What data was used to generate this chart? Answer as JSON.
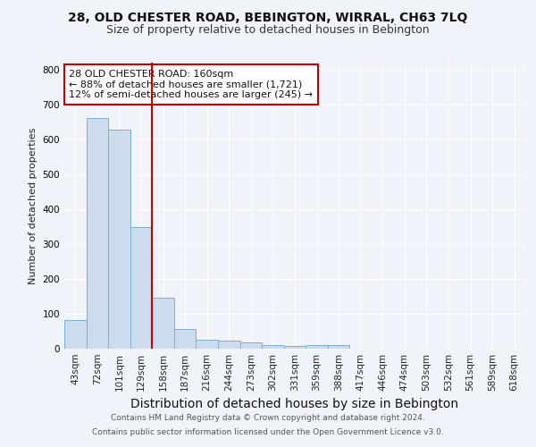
{
  "title1": "28, OLD CHESTER ROAD, BEBINGTON, WIRRAL, CH63 7LQ",
  "title2": "Size of property relative to detached houses in Bebington",
  "xlabel": "Distribution of detached houses by size in Bebington",
  "ylabel": "Number of detached properties",
  "bar_labels": [
    "43sqm",
    "72sqm",
    "101sqm",
    "129sqm",
    "158sqm",
    "187sqm",
    "216sqm",
    "244sqm",
    "273sqm",
    "302sqm",
    "331sqm",
    "359sqm",
    "388sqm",
    "417sqm",
    "446sqm",
    "474sqm",
    "503sqm",
    "532sqm",
    "561sqm",
    "589sqm",
    "618sqm"
  ],
  "bar_heights": [
    83,
    660,
    628,
    348,
    145,
    57,
    26,
    22,
    18,
    10,
    8,
    10,
    10,
    0,
    0,
    0,
    0,
    0,
    0,
    0,
    0
  ],
  "bar_color": "#cddcec",
  "bar_edgecolor": "#7bafd4",
  "vline_color": "#cc0000",
  "vline_x": 4.0,
  "annotation_line1": "28 OLD CHESTER ROAD: 160sqm",
  "annotation_line2": "← 88% of detached houses are smaller (1,721)",
  "annotation_line3": "12% of semi-detached houses are larger (245) →",
  "annotation_box_edgecolor": "#cc0000",
  "annotation_box_facecolor": "#ffffff",
  "footer_line1": "Contains HM Land Registry data © Crown copyright and database right 2024.",
  "footer_line2": "Contains public sector information licensed under the Open Government Licence v3.0.",
  "ylim": [
    0,
    820
  ],
  "bg_color": "#f0f4fa",
  "plot_bg_color": "#f0f4fa",
  "grid_color": "#ffffff",
  "title1_fontsize": 10,
  "title2_fontsize": 9,
  "xlabel_fontsize": 10,
  "ylabel_fontsize": 8,
  "annotation_fontsize": 8,
  "tick_fontsize": 7.5,
  "footer_fontsize": 6.5
}
